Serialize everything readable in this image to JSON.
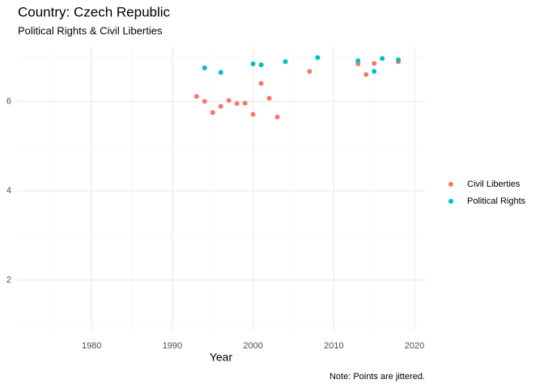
{
  "chart_data": {
    "type": "scatter",
    "title": "Country: Czech Republic",
    "subtitle": "Political Rights & Civil Liberties",
    "x_label": "Year",
    "caption": "Note: Points are jittered.",
    "xlim": [
      1970.85,
      2021.3
    ],
    "xticks": [
      1980,
      1990,
      2000,
      2010,
      2020
    ],
    "xminor": [
      1975,
      1985,
      1995,
      2005,
      2015
    ],
    "ylim": [
      0.85,
      7.22
    ],
    "yticks": [
      2,
      4,
      6
    ],
    "yminor": [
      1,
      3,
      5,
      7
    ],
    "grid": true,
    "legend": "right",
    "series": [
      {
        "name": "Civil Liberties",
        "color": "#F8766D",
        "x": [
          1993,
          1994,
          1995,
          1996,
          1997,
          1998,
          1999,
          2000,
          2001,
          2002,
          2003,
          2007,
          2013,
          2014,
          2015,
          2018
        ],
        "values": [
          6.11,
          6.0,
          5.75,
          5.89,
          6.02,
          5.95,
          5.96,
          5.71,
          6.4,
          6.07,
          5.65,
          6.67,
          6.84,
          6.6,
          6.85,
          6.89
        ]
      },
      {
        "name": "Political Rights",
        "color": "#00BFC4",
        "x": [
          1994,
          1996,
          2000,
          2001,
          2004,
          2008,
          2013,
          2015,
          2016,
          2018
        ],
        "values": [
          6.75,
          6.65,
          6.84,
          6.82,
          6.89,
          6.98,
          6.91,
          6.67,
          6.96,
          6.93
        ]
      }
    ]
  }
}
